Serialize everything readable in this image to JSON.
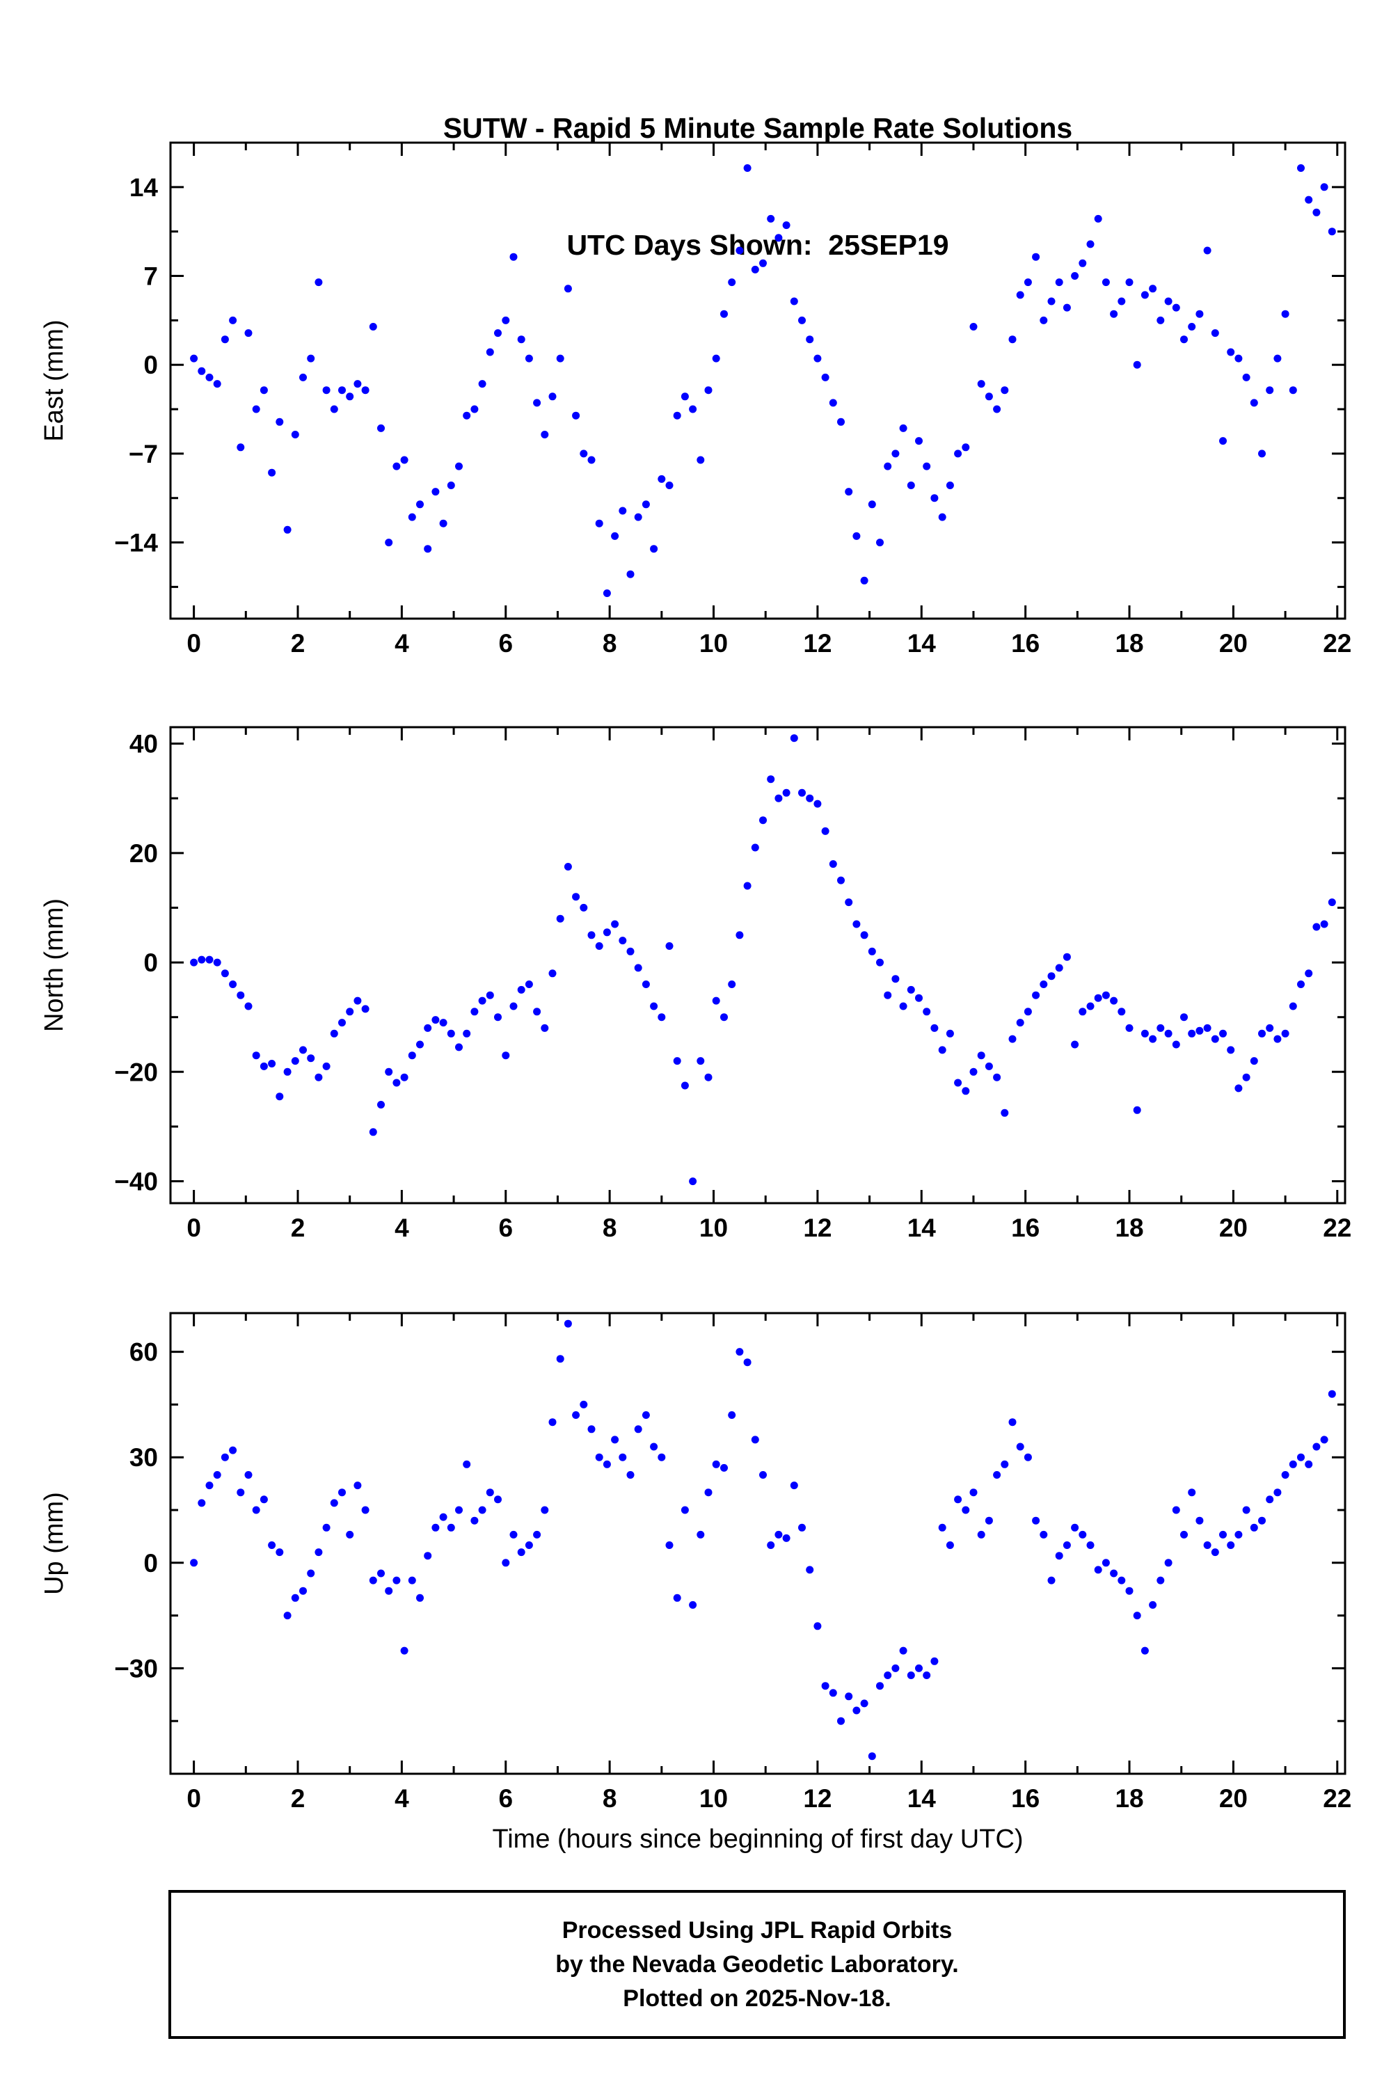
{
  "title": {
    "line1": "SUTW - Rapid 5 Minute Sample Rate Solutions",
    "line2": "UTC Days Shown:  25SEP19"
  },
  "footer": {
    "line1": "Processed Using JPL Rapid Orbits",
    "line2": "by the Nevada Geodetic Laboratory.",
    "line3": "Plotted on 2025-Nov-18."
  },
  "chart_meta": {
    "xlabel": "Time (hours since beginning of first day UTC)",
    "marker_color": "#0000ff",
    "station": "SUTW",
    "utc_day": "25SEP19"
  },
  "chart_data": [
    {
      "type": "scatter",
      "name": "East",
      "ylabel": "East (mm)",
      "ylim": [
        -20,
        17.5
      ],
      "yticks": [
        -14,
        -7,
        0,
        7,
        14
      ],
      "yminor": [
        -17.5,
        -10.5,
        -3.5,
        3.5,
        10.5
      ],
      "xlim": [
        -0.45,
        22.15
      ],
      "xticks": [
        0,
        2,
        4,
        6,
        8,
        10,
        12,
        14,
        16,
        18,
        20,
        22
      ],
      "xminor": [
        1,
        3,
        5,
        7,
        9,
        11,
        13,
        15,
        17,
        19,
        21
      ],
      "x_start": 0,
      "x_step": 0.15,
      "y": [
        0.5,
        -0.5,
        -1,
        -1.5,
        2,
        3.5,
        -6.5,
        2.5,
        -3.5,
        -2,
        -8.5,
        -4.5,
        -13,
        -5.5,
        -1,
        0.5,
        6.5,
        -2,
        -3.5,
        -2,
        -2.5,
        -1.5,
        -2,
        3,
        -5,
        -14,
        -8,
        -7.5,
        -12,
        -11,
        -14.5,
        -10,
        -12.5,
        -9.5,
        -8,
        -4,
        -3.5,
        -1.5,
        1,
        2.5,
        3.5,
        8.5,
        2,
        0.5,
        -3,
        -5.5,
        -2.5,
        0.5,
        6,
        -4,
        -7,
        -7.5,
        -12.5,
        -18,
        -13.5,
        -11.5,
        -16.5,
        -12,
        -11,
        -14.5,
        -9,
        -9.5,
        -4,
        -2.5,
        -3.5,
        -7.5,
        -2,
        0.5,
        4,
        6.5,
        9,
        15.5,
        7.5,
        8,
        11.5,
        10,
        11,
        5,
        3.5,
        2,
        0.5,
        -1,
        -3,
        -4.5,
        -10,
        -13.5,
        -17,
        -11,
        -14,
        -8,
        -7,
        -5,
        -9.5,
        -6,
        -8,
        -10.5,
        -12,
        -9.5,
        -7,
        -6.5,
        3,
        -1.5,
        -2.5,
        -3.5,
        -2,
        2,
        5.5,
        6.5,
        8.5,
        3.5,
        5,
        6.5,
        4.5,
        7,
        8,
        9.5,
        11.5,
        6.5,
        4,
        5,
        6.5,
        0,
        5.5,
        6,
        3.5,
        5,
        4.5,
        2,
        3,
        4,
        9,
        2.5,
        -6,
        1,
        0.5,
        -1,
        -3,
        -7,
        -2,
        0.5,
        4,
        -2,
        15.5,
        13,
        12,
        14,
        10.5
      ]
    },
    {
      "type": "scatter",
      "name": "North",
      "ylabel": "North (mm)",
      "ylim": [
        -44,
        43
      ],
      "yticks": [
        -40,
        -20,
        0,
        20,
        40
      ],
      "yminor": [
        -30,
        -10,
        10,
        30
      ],
      "xlim": [
        -0.45,
        22.15
      ],
      "xticks": [
        0,
        2,
        4,
        6,
        8,
        10,
        12,
        14,
        16,
        18,
        20,
        22
      ],
      "xminor": [
        1,
        3,
        5,
        7,
        9,
        11,
        13,
        15,
        17,
        19,
        21
      ],
      "x_start": 0,
      "x_step": 0.15,
      "y": [
        0,
        0.5,
        0.5,
        0,
        -2,
        -4,
        -6,
        -8,
        -17,
        -19,
        -18.5,
        -24.5,
        -20,
        -18,
        -16,
        -17.5,
        -21,
        -19,
        -13,
        -11,
        -9,
        -7,
        -8.5,
        -31,
        -26,
        -20,
        -22,
        -21,
        -17,
        -15,
        -12,
        -10.5,
        -11,
        -13,
        -15.5,
        -13,
        -9,
        -7,
        -6,
        -10,
        -17,
        -8,
        -5,
        -4,
        -9,
        -12,
        -2,
        8,
        17.5,
        12,
        10,
        5,
        3,
        5.5,
        7,
        4,
        2,
        -1,
        -4,
        -8,
        -10,
        3,
        -18,
        -22.5,
        -40,
        -18,
        -21,
        -7,
        -10,
        -4,
        5,
        14,
        21,
        26,
        33.5,
        30,
        31,
        41,
        31,
        30,
        29,
        24,
        18,
        15,
        11,
        7,
        5,
        2,
        0,
        -6,
        -3,
        -8,
        -5,
        -6.5,
        -9,
        -12,
        -16,
        -13,
        -22,
        -23.5,
        -20,
        -17,
        -19,
        -21,
        -27.5,
        -14,
        -11,
        -9,
        -6,
        -4,
        -2.5,
        -1,
        1,
        -15,
        -9,
        -8,
        -6.5,
        -6,
        -7,
        -9,
        -12,
        -27,
        -13,
        -14,
        -12,
        -13,
        -15,
        -10,
        -13,
        -12.5,
        -12,
        -14,
        -13,
        -16,
        -23,
        -21,
        -18,
        -13,
        -12,
        -14,
        -13,
        -8,
        -4,
        -2,
        6.5,
        7,
        11
      ]
    },
    {
      "type": "scatter",
      "name": "Up",
      "ylabel": "Up (mm)",
      "ylim": [
        -60,
        71
      ],
      "yticks": [
        -30,
        0,
        30,
        60
      ],
      "yminor": [
        -45,
        -15,
        15,
        45
      ],
      "xlim": [
        -0.45,
        22.15
      ],
      "xticks": [
        0,
        2,
        4,
        6,
        8,
        10,
        12,
        14,
        16,
        18,
        20,
        22
      ],
      "xminor": [
        1,
        3,
        5,
        7,
        9,
        11,
        13,
        15,
        17,
        19,
        21
      ],
      "x_start": 0,
      "x_step": 0.15,
      "y": [
        0,
        17,
        22,
        25,
        30,
        32,
        20,
        25,
        15,
        18,
        5,
        3,
        -15,
        -10,
        -8,
        -3,
        3,
        10,
        17,
        20,
        8,
        22,
        15,
        -5,
        -3,
        -8,
        -5,
        -25,
        -5,
        -10,
        2,
        10,
        13,
        10,
        15,
        28,
        12,
        15,
        20,
        18,
        0,
        8,
        3,
        5,
        8,
        15,
        40,
        58,
        68,
        42,
        45,
        38,
        30,
        28,
        35,
        30,
        25,
        38,
        42,
        33,
        30,
        5,
        -10,
        15,
        -12,
        8,
        20,
        28,
        27,
        42,
        60,
        57,
        35,
        25,
        5,
        8,
        7,
        22,
        10,
        -2,
        -18,
        -35,
        -37,
        -45,
        -38,
        -42,
        -40,
        -55,
        -35,
        -32,
        -30,
        -25,
        -32,
        -30,
        -32,
        -28,
        10,
        5,
        18,
        15,
        20,
        8,
        12,
        25,
        28,
        40,
        33,
        30,
        12,
        8,
        -5,
        2,
        5,
        10,
        8,
        5,
        -2,
        0,
        -3,
        -5,
        -8,
        -15,
        -25,
        -12,
        -5,
        0,
        15,
        8,
        20,
        12,
        5,
        3,
        8,
        5,
        8,
        15,
        10,
        12,
        18,
        20,
        25,
        28,
        30,
        28,
        33,
        35,
        48
      ]
    }
  ]
}
